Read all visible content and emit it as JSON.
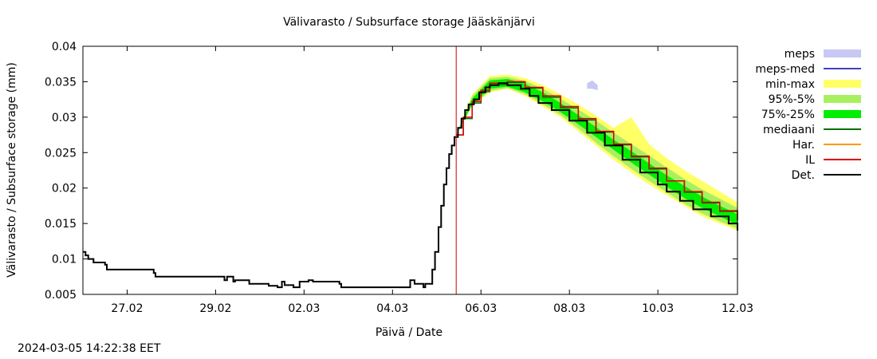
{
  "footer": {
    "timestamp": "2024-03-05 14:22:38 EET"
  },
  "chart_data": {
    "type": "line",
    "title": "Välivarasto / Subsurface storage  Jääskänjärvi",
    "xlabel": "Päivä / Date",
    "ylabel": "Välivarasto / Subsurface storage (mm)",
    "xlim": [
      0,
      7.4
    ],
    "ylim": [
      0.005,
      0.04
    ],
    "x_ticks": [
      {
        "x": 0.5,
        "label": "27.02"
      },
      {
        "x": 1.5,
        "label": "29.02"
      },
      {
        "x": 2.5,
        "label": "02.03"
      },
      {
        "x": 3.5,
        "label": "04.03"
      },
      {
        "x": 4.5,
        "label": "06.03"
      },
      {
        "x": 5.5,
        "label": "08.03"
      },
      {
        "x": 6.5,
        "label": "10.03"
      },
      {
        "x": 7.4,
        "label": "12.03"
      }
    ],
    "y_ticks": [
      {
        "y": 0.005,
        "label": "0.005"
      },
      {
        "y": 0.01,
        "label": "0.01"
      },
      {
        "y": 0.015,
        "label": "0.015"
      },
      {
        "y": 0.02,
        "label": "0.02"
      },
      {
        "y": 0.025,
        "label": "0.025"
      },
      {
        "y": 0.03,
        "label": "0.03"
      },
      {
        "y": 0.035,
        "label": "0.035"
      },
      {
        "y": 0.04,
        "label": "0.04"
      }
    ],
    "forecast_start_x": 4.22,
    "legend_position": "right",
    "legend": [
      {
        "name": "meps",
        "kind": "band",
        "color": "#c8c8f4"
      },
      {
        "name": "meps-med",
        "kind": "line",
        "color": "#4040c0"
      },
      {
        "name": "min-max",
        "kind": "band",
        "color": "#ffff66"
      },
      {
        "name": "95%-5%",
        "kind": "band",
        "color": "#a8f060"
      },
      {
        "name": "75%-25%",
        "kind": "band",
        "color": "#00ee00"
      },
      {
        "name": "mediaani",
        "kind": "line",
        "color": "#007000"
      },
      {
        "name": "Har.",
        "kind": "line",
        "color": "#ff9900"
      },
      {
        "name": "IL",
        "kind": "line",
        "color": "#dd0000"
      },
      {
        "name": "Det.",
        "kind": "line",
        "color": "#000000"
      }
    ],
    "series": [
      {
        "name": "Det.",
        "color": "#000000",
        "x": [
          0,
          0.03,
          0.06,
          0.12,
          0.25,
          0.27,
          0.8,
          0.82,
          1.6,
          1.63,
          1.7,
          1.72,
          1.88,
          2.1,
          2.2,
          2.25,
          2.28,
          2.38,
          2.45,
          2.55,
          2.6,
          2.7,
          2.9,
          2.92,
          3.7,
          3.75,
          3.85,
          3.87,
          3.95,
          3.98,
          4.02,
          4.05,
          4.08,
          4.11,
          4.14,
          4.17,
          4.2,
          4.24,
          4.28,
          4.32,
          4.36,
          4.42,
          4.48,
          4.55,
          4.6,
          4.7,
          4.8,
          4.95,
          5.05,
          5.15,
          5.3,
          5.5,
          5.7,
          5.9,
          6.1,
          6.3,
          6.5,
          6.6,
          6.75,
          6.9,
          7.1,
          7.3,
          7.4
        ],
        "y": [
          0.011,
          0.0105,
          0.01,
          0.0095,
          0.0092,
          0.0085,
          0.008,
          0.0075,
          0.007,
          0.0075,
          0.0068,
          0.007,
          0.0065,
          0.0062,
          0.006,
          0.0068,
          0.0063,
          0.006,
          0.0068,
          0.007,
          0.0068,
          0.0068,
          0.0065,
          0.006,
          0.007,
          0.0065,
          0.006,
          0.0065,
          0.0085,
          0.011,
          0.0145,
          0.0175,
          0.0205,
          0.0228,
          0.0248,
          0.026,
          0.0272,
          0.0285,
          0.0298,
          0.031,
          0.0318,
          0.0325,
          0.0335,
          0.0342,
          0.0345,
          0.0348,
          0.0345,
          0.034,
          0.033,
          0.032,
          0.031,
          0.0295,
          0.0278,
          0.026,
          0.024,
          0.0222,
          0.0205,
          0.0195,
          0.0182,
          0.017,
          0.016,
          0.015,
          0.014
        ]
      },
      {
        "name": "IL",
        "color": "#dd0000",
        "x": [
          4.22,
          4.3,
          4.4,
          4.5,
          4.6,
          4.8,
          5.0,
          5.2,
          5.4,
          5.6,
          5.8,
          6.0,
          6.2,
          6.4,
          6.6,
          6.8,
          7.0,
          7.2,
          7.4
        ],
        "y": [
          0.0275,
          0.03,
          0.0322,
          0.0338,
          0.0348,
          0.035,
          0.0342,
          0.033,
          0.0315,
          0.0298,
          0.028,
          0.0262,
          0.0245,
          0.0228,
          0.021,
          0.0195,
          0.018,
          0.0168,
          0.0155
        ]
      },
      {
        "name": "mediaani",
        "color": "#007000",
        "x": [
          4.22,
          4.3,
          4.4,
          4.5,
          4.6,
          4.8,
          5.0,
          5.2,
          5.4,
          5.6,
          5.8,
          6.0,
          6.2,
          6.4,
          6.6,
          6.8,
          7.0,
          7.2,
          7.4
        ],
        "y": [
          0.0275,
          0.0298,
          0.032,
          0.0336,
          0.0346,
          0.0349,
          0.0341,
          0.0328,
          0.0313,
          0.0296,
          0.0279,
          0.0261,
          0.0244,
          0.0227,
          0.021,
          0.0194,
          0.0179,
          0.0167,
          0.0154
        ]
      }
    ],
    "bands": [
      {
        "name": "min-max",
        "color": "#ffff66",
        "x": [
          4.22,
          4.4,
          4.6,
          4.8,
          5.0,
          5.2,
          5.4,
          5.6,
          5.8,
          6.0,
          6.2,
          6.4,
          6.6,
          6.8,
          7.0,
          7.2,
          7.4
        ],
        "low": [
          0.0275,
          0.0315,
          0.0335,
          0.034,
          0.033,
          0.0315,
          0.03,
          0.028,
          0.026,
          0.024,
          0.0222,
          0.0205,
          0.019,
          0.0175,
          0.016,
          0.015,
          0.014
        ],
        "high": [
          0.0275,
          0.0332,
          0.0358,
          0.036,
          0.0355,
          0.0345,
          0.0332,
          0.0318,
          0.0302,
          0.0285,
          0.03,
          0.0262,
          0.0242,
          0.0225,
          0.021,
          0.0195,
          0.018
        ]
      },
      {
        "name": "95%-5%",
        "color": "#a8f060",
        "x": [
          4.22,
          4.4,
          4.6,
          4.8,
          5.0,
          5.2,
          5.4,
          5.6,
          5.8,
          6.0,
          6.2,
          6.4,
          6.6,
          6.8,
          7.0,
          7.2,
          7.4
        ],
        "low": [
          0.0275,
          0.0316,
          0.0337,
          0.0341,
          0.0332,
          0.0318,
          0.0303,
          0.0284,
          0.0264,
          0.0245,
          0.0227,
          0.021,
          0.0194,
          0.0178,
          0.0164,
          0.0153,
          0.0143
        ],
        "high": [
          0.0275,
          0.033,
          0.0355,
          0.0357,
          0.0351,
          0.034,
          0.0326,
          0.0311,
          0.0295,
          0.0278,
          0.0262,
          0.0246,
          0.0229,
          0.0213,
          0.0198,
          0.0185,
          0.0172
        ]
      },
      {
        "name": "75%-25%",
        "color": "#00ee00",
        "x": [
          4.22,
          4.4,
          4.6,
          4.8,
          5.0,
          5.2,
          5.4,
          5.6,
          5.8,
          6.0,
          6.2,
          6.4,
          6.6,
          6.8,
          7.0,
          7.2,
          7.4
        ],
        "low": [
          0.0275,
          0.0318,
          0.034,
          0.0343,
          0.0335,
          0.0322,
          0.0307,
          0.029,
          0.0272,
          0.0254,
          0.0236,
          0.0219,
          0.0202,
          0.0186,
          0.0172,
          0.016,
          0.0148
        ],
        "high": [
          0.0275,
          0.0326,
          0.0352,
          0.0354,
          0.0347,
          0.0335,
          0.032,
          0.0303,
          0.0286,
          0.0268,
          0.0252,
          0.0235,
          0.0218,
          0.0203,
          0.0188,
          0.0175,
          0.0163
        ]
      },
      {
        "name": "meps",
        "color": "#c8c8f4",
        "x": [
          5.7,
          5.76,
          5.82
        ],
        "low": [
          0.034,
          0.034,
          0.0338
        ],
        "high": [
          0.0348,
          0.0352,
          0.0345
        ]
      }
    ]
  }
}
